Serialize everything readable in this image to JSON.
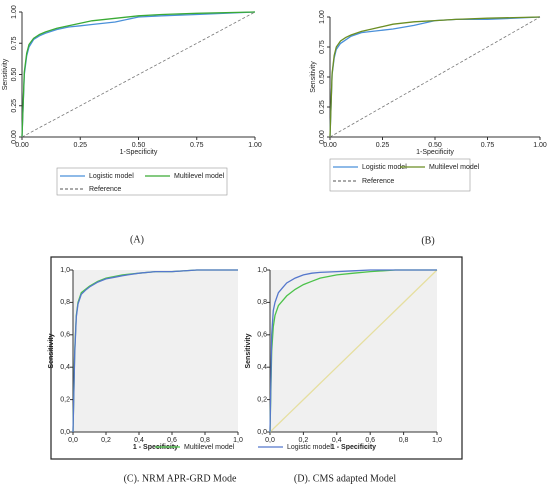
{
  "chart_data": [
    {
      "type": "line",
      "caption": "(A)",
      "ylabel": "Sensitivity",
      "xlabel": "1-Specificity",
      "x": [
        0,
        0.01,
        0.02,
        0.03,
        0.05,
        0.075,
        0.1,
        0.15,
        0.2,
        0.25,
        0.3,
        0.4,
        0.5,
        0.6,
        0.75,
        1
      ],
      "xlim": [
        0,
        1
      ],
      "ylim": [
        0,
        1
      ],
      "xticks": [
        {
          "value": 0,
          "label": "0.00"
        },
        {
          "value": 0.25,
          "label": "0.25"
        },
        {
          "value": 0.5,
          "label": "0.50"
        },
        {
          "value": 0.75,
          "label": "0.75"
        },
        {
          "value": 1,
          "label": "1.00"
        }
      ],
      "yticks": [
        {
          "value": 0,
          "label": "0.00"
        },
        {
          "value": 0.25,
          "label": "0.25"
        },
        {
          "value": 0.5,
          "label": "0.50"
        },
        {
          "value": 0.75,
          "label": "0.75"
        },
        {
          "value": 1,
          "label": "1.00"
        }
      ],
      "series": [
        {
          "name": "Logistic model",
          "color": "#4a90d9",
          "values": [
            0,
            0.5,
            0.65,
            0.72,
            0.78,
            0.81,
            0.83,
            0.86,
            0.88,
            0.89,
            0.9,
            0.92,
            0.96,
            0.97,
            0.98,
            1
          ]
        },
        {
          "name": "Multilevel model",
          "color": "#3aaa35",
          "values": [
            0,
            0.52,
            0.67,
            0.74,
            0.79,
            0.82,
            0.84,
            0.87,
            0.89,
            0.91,
            0.93,
            0.95,
            0.97,
            0.98,
            0.99,
            1
          ]
        },
        {
          "name": "Reference",
          "color": "#777777",
          "dash": true,
          "values": [
            0,
            0.01,
            0.02,
            0.03,
            0.05,
            0.075,
            0.1,
            0.15,
            0.2,
            0.25,
            0.3,
            0.4,
            0.5,
            0.6,
            0.75,
            1
          ]
        }
      ]
    },
    {
      "type": "line",
      "caption": "(B)",
      "ylabel": "Sensitivity",
      "xlabel": "1-Specificity",
      "x": [
        0,
        0.01,
        0.02,
        0.03,
        0.05,
        0.075,
        0.1,
        0.15,
        0.2,
        0.25,
        0.3,
        0.4,
        0.5,
        0.6,
        0.75,
        1
      ],
      "xlim": [
        0,
        1
      ],
      "ylim": [
        0,
        1
      ],
      "xticks": [
        {
          "value": 0,
          "label": "0.00"
        },
        {
          "value": 0.25,
          "label": "0.25"
        },
        {
          "value": 0.5,
          "label": "0.50"
        },
        {
          "value": 0.75,
          "label": "0.75"
        },
        {
          "value": 1,
          "label": "1.00"
        }
      ],
      "yticks": [
        {
          "value": 0,
          "label": "0.00"
        },
        {
          "value": 0.25,
          "label": "0.25"
        },
        {
          "value": 0.5,
          "label": "0.50"
        },
        {
          "value": 0.75,
          "label": "0.75"
        },
        {
          "value": 1,
          "label": "1.00"
        }
      ],
      "series": [
        {
          "name": "Logistic model",
          "color": "#4a90d9",
          "values": [
            0,
            0.52,
            0.66,
            0.73,
            0.78,
            0.81,
            0.84,
            0.87,
            0.88,
            0.89,
            0.9,
            0.93,
            0.97,
            0.98,
            0.98,
            1
          ]
        },
        {
          "name": "Multilevel model",
          "color": "#6b8e23",
          "values": [
            0,
            0.53,
            0.68,
            0.75,
            0.8,
            0.83,
            0.85,
            0.88,
            0.9,
            0.92,
            0.94,
            0.96,
            0.97,
            0.98,
            0.99,
            1
          ]
        },
        {
          "name": "Reference",
          "color": "#777777",
          "dash": true,
          "values": [
            0,
            0.01,
            0.02,
            0.03,
            0.05,
            0.075,
            0.1,
            0.15,
            0.2,
            0.25,
            0.3,
            0.4,
            0.5,
            0.6,
            0.75,
            1
          ]
        }
      ]
    },
    {
      "type": "line",
      "caption": "(C). NRM APR-GRD Mode",
      "ylabel": "Sensitivity",
      "xlabel": "1 - Specificity",
      "background": "#f0f0f0",
      "x": [
        0,
        0.01,
        0.02,
        0.03,
        0.05,
        0.075,
        0.1,
        0.15,
        0.2,
        0.25,
        0.3,
        0.4,
        0.5,
        0.6,
        0.75,
        1
      ],
      "xlim": [
        0,
        1
      ],
      "ylim": [
        0,
        1
      ],
      "xticks": [
        {
          "value": 0,
          "label": "0,0"
        },
        {
          "value": 0.2,
          "label": "0,2"
        },
        {
          "value": 0.4,
          "label": "0,4"
        },
        {
          "value": 0.6,
          "label": "0,6"
        },
        {
          "value": 0.8,
          "label": "0,8"
        },
        {
          "value": 1,
          "label": "1,0"
        }
      ],
      "yticks": [
        {
          "value": 0,
          "label": "0,0"
        },
        {
          "value": 0.2,
          "label": "0,2"
        },
        {
          "value": 0.4,
          "label": "0,4"
        },
        {
          "value": 0.6,
          "label": "0,6"
        },
        {
          "value": 0.8,
          "label": "0,8"
        },
        {
          "value": 1,
          "label": "1,0"
        }
      ],
      "series": [
        {
          "name": "Multilevel model",
          "color": "#4cc24a",
          "values": [
            0,
            0.5,
            0.72,
            0.8,
            0.86,
            0.88,
            0.9,
            0.93,
            0.95,
            0.96,
            0.97,
            0.98,
            0.99,
            0.99,
            1,
            1
          ]
        },
        {
          "name": "Logistic model",
          "color": "#5577cc",
          "values": [
            0,
            0.48,
            0.71,
            0.79,
            0.85,
            0.875,
            0.895,
            0.925,
            0.945,
            0.955,
            0.965,
            0.98,
            0.99,
            0.99,
            1,
            1
          ]
        }
      ]
    },
    {
      "type": "line",
      "caption": "(D). CMS adapted Model",
      "ylabel": "Sensitivity",
      "xlabel": "1 - Specificity",
      "background": "#f0f0f0",
      "x": [
        0,
        0.01,
        0.02,
        0.03,
        0.05,
        0.075,
        0.1,
        0.15,
        0.2,
        0.25,
        0.3,
        0.4,
        0.5,
        0.6,
        0.75,
        1
      ],
      "xlim": [
        0,
        1
      ],
      "ylim": [
        0,
        1
      ],
      "xticks": [
        {
          "value": 0,
          "label": "0,0"
        },
        {
          "value": 0.2,
          "label": "0,2"
        },
        {
          "value": 0.4,
          "label": "0,4"
        },
        {
          "value": 0.6,
          "label": "0,6"
        },
        {
          "value": 0.8,
          "label": "0,8"
        },
        {
          "value": 1,
          "label": "1,0"
        }
      ],
      "yticks": [
        {
          "value": 0,
          "label": "0,0"
        },
        {
          "value": 0.2,
          "label": "0,2"
        },
        {
          "value": 0.4,
          "label": "0,4"
        },
        {
          "value": 0.6,
          "label": "0,6"
        },
        {
          "value": 0.8,
          "label": "0,8"
        },
        {
          "value": 1,
          "label": "1,0"
        }
      ],
      "series": [
        {
          "color": "#e6dfa0",
          "values": [
            0,
            0.01,
            0.02,
            0.03,
            0.05,
            0.075,
            0.1,
            0.15,
            0.2,
            0.25,
            0.3,
            0.4,
            0.5,
            0.6,
            0.75,
            1
          ]
        },
        {
          "color": "#4cc24a",
          "values": [
            0,
            0.5,
            0.65,
            0.72,
            0.78,
            0.81,
            0.84,
            0.88,
            0.91,
            0.93,
            0.95,
            0.97,
            0.98,
            0.99,
            1,
            1
          ]
        },
        {
          "color": "#5577cc",
          "values": [
            0,
            0.6,
            0.75,
            0.8,
            0.86,
            0.89,
            0.92,
            0.95,
            0.97,
            0.98,
            0.985,
            0.99,
            0.995,
            1,
            1,
            1
          ]
        }
      ]
    }
  ]
}
